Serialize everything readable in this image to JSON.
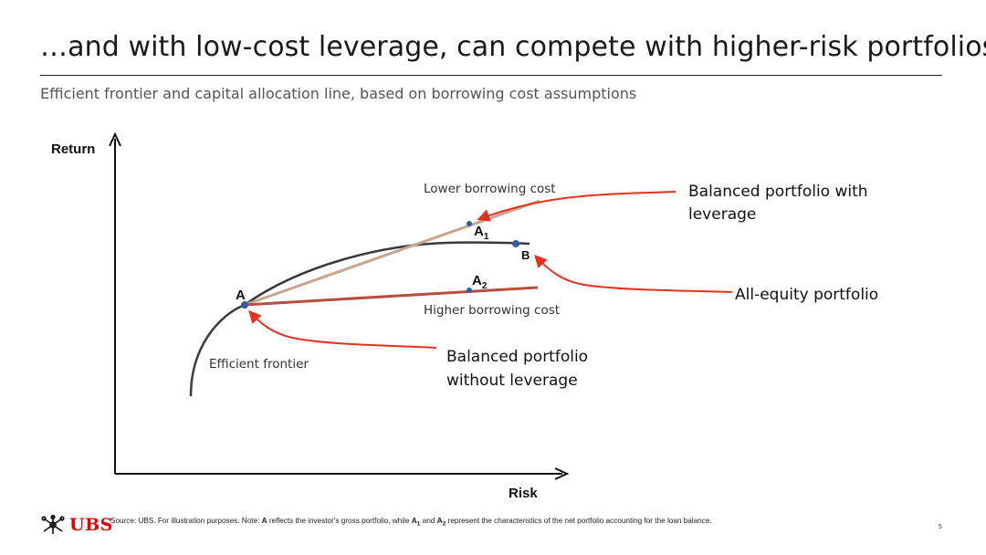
{
  "slide": {
    "title": "…and with low-cost leverage, can compete with higher-risk portfolios",
    "subtitle": "Efficient frontier and capital allocation line, based on borrowing cost assumptions",
    "page_number": "5"
  },
  "diagram": {
    "axis_y_label": "Return",
    "axis_x_label": "Risk",
    "curve_label": "Efficient frontier",
    "lower_line_label": "Lower borrowing cost",
    "higher_line_label": "Higher borrowing cost",
    "point_a": "A",
    "point_a1_letter": "A",
    "point_a1_sub": "1",
    "point_a2_letter": "A",
    "point_a2_sub": "2",
    "point_b": "B",
    "callout_leverage_line1": "Balanced portfolio with",
    "callout_leverage_line2": "leverage",
    "callout_equity": "All-equity portfolio",
    "callout_no_leverage_line1": "Balanced portfolio",
    "callout_no_leverage_line2": "without leverage",
    "colors": {
      "frontier": "#3a3a3a",
      "lower_line": "#c8a68e",
      "higher_line": "#b5503f",
      "point": "#2e5ea5",
      "arrow": "#e8321e",
      "axis": "#111111"
    }
  },
  "footer": {
    "logo_text": "UBS",
    "source_prefix": "Source: UBS. For illustration purposes. Note: ",
    "source_a": "A",
    "source_mid": " reflects the investor's gross portfolio, while ",
    "source_a1": "A",
    "source_a1_sub": "1",
    "source_and": " and ",
    "source_a2": "A",
    "source_a2_sub": "2",
    "source_suffix": " represent the characteristics of the net portfolio accounting for the loan balance."
  }
}
